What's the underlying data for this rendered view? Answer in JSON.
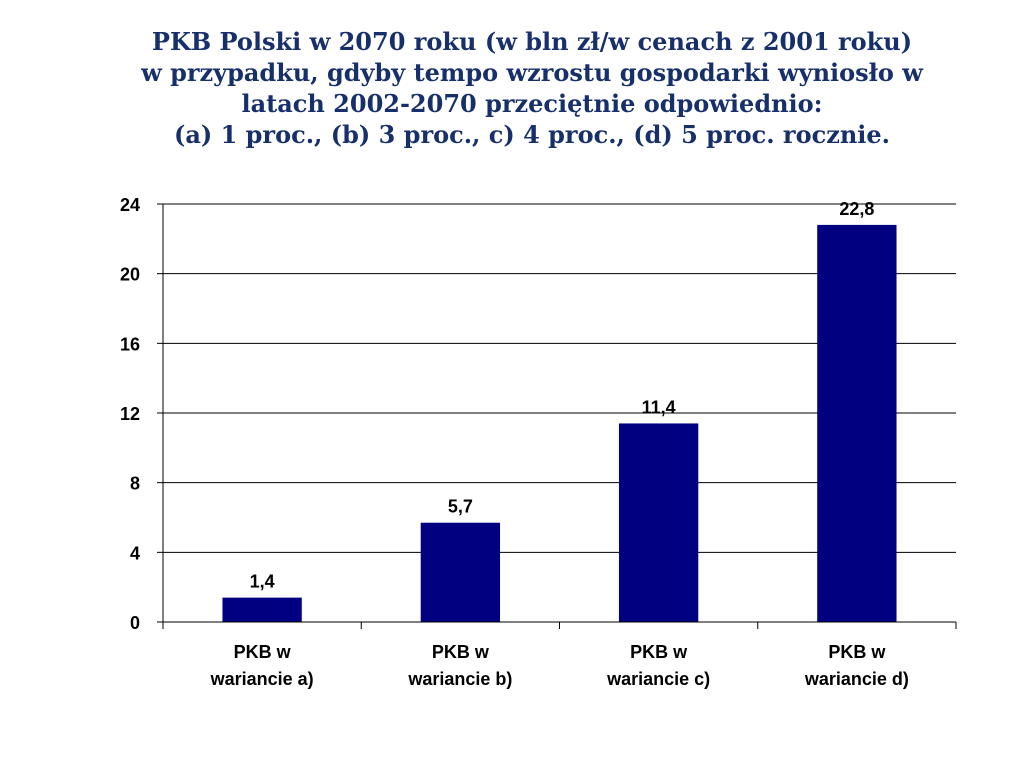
{
  "chart_title_lines": [
    "PKB Polski w 2070 roku (w bln zł/w cenach z 2001 roku)",
    "w przypadku, gdyby tempo wzrostu gospodarki  wyniosło w",
    "latach 2002-2070 przeciętnie odpowiednio:",
    "(a) 1 proc., (b) 3 proc., c) 4 proc., (d) 5 proc. rocznie."
  ],
  "chart_data": {
    "type": "bar",
    "title": "PKB Polski w 2070 roku (w bln zł/w cenach z 2001 roku) w przypadku, gdyby tempo wzrostu gospodarki  wyniosło w latach 2002-2070 przeciętnie odpowiednio: (a) 1 proc., (b) 3 proc., c) 4 proc., (d) 5 proc. rocznie.",
    "categories": [
      [
        "PKB w",
        "wariancie a)"
      ],
      [
        "PKB w",
        "wariancie b)"
      ],
      [
        "PKB w",
        "wariancie c)"
      ],
      [
        "PKB w",
        "wariancie d)"
      ]
    ],
    "values": [
      1.4,
      5.7,
      11.4,
      22.8
    ],
    "data_labels": [
      "1,4",
      "5,7",
      "11,4",
      "22,8"
    ],
    "ylim": [
      0,
      24
    ],
    "yticks": [
      0,
      4,
      8,
      12,
      16,
      20,
      24
    ],
    "grid": true,
    "bar_color": "#000080"
  }
}
